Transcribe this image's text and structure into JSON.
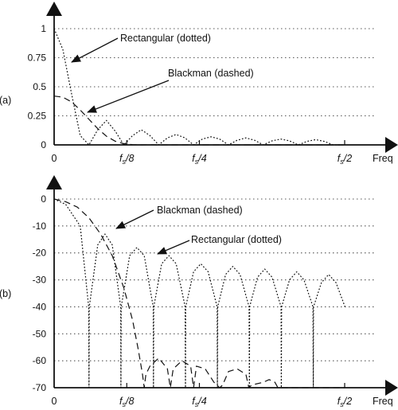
{
  "chart_data": [
    {
      "panel_label": "(a)",
      "type": "line",
      "xlabel": "Freq",
      "ylabel": "",
      "ylim": [
        0,
        1
      ],
      "yticks": [
        "0",
        "0.25",
        "0.5",
        "0.75",
        "1"
      ],
      "xticks": [
        {
          "x": 0,
          "label": "0"
        },
        {
          "x": 0.125,
          "label": "fs/8"
        },
        {
          "x": 0.25,
          "label": "fs/4"
        },
        {
          "x": 0.5,
          "label": "fs/2"
        }
      ],
      "grid": true,
      "annotations": [
        "Rectangular (dotted)",
        "Blackman (dashed)"
      ],
      "series": [
        {
          "name": "Rectangular (dotted)",
          "line_style": "dotted",
          "x": [
            0,
            0.015,
            0.03,
            0.045,
            0.06,
            0.075,
            0.09,
            0.105,
            0.12,
            0.135,
            0.15,
            0.165,
            0.18,
            0.195,
            0.21,
            0.225,
            0.24,
            0.255,
            0.27,
            0.285,
            0.3,
            0.315,
            0.33,
            0.345,
            0.36,
            0.375,
            0.39,
            0.405,
            0.42,
            0.435,
            0.45,
            0.465,
            0.48,
            0.495
          ],
          "y": [
            1,
            0.82,
            0.44,
            0.08,
            0,
            0.13,
            0.21,
            0.12,
            0,
            0.08,
            0.13,
            0.08,
            0,
            0.06,
            0.09,
            0.06,
            0,
            0.05,
            0.07,
            0.05,
            0,
            0.04,
            0.06,
            0.04,
            0,
            0.035,
            0.05,
            0.035,
            0,
            0.03,
            0.045,
            0.03,
            0,
            0
          ]
        },
        {
          "name": "Blackman (dashed)",
          "line_style": "dashed",
          "x": [
            0,
            0.015,
            0.03,
            0.045,
            0.06,
            0.075,
            0.09,
            0.105,
            0.12,
            0.135,
            0.15,
            0.165,
            0.18,
            0.5
          ],
          "y": [
            0.42,
            0.41,
            0.37,
            0.3,
            0.22,
            0.14,
            0.075,
            0.032,
            0.01,
            0.002,
            0,
            0.001,
            0,
            0
          ]
        }
      ]
    },
    {
      "panel_label": "(b)",
      "type": "line",
      "xlabel": "Freq",
      "ylabel": "",
      "ylim": [
        -70,
        0
      ],
      "yticks": [
        "0",
        "-10",
        "-20",
        "-30",
        "-40",
        "-50",
        "-60",
        "-70"
      ],
      "xticks": [
        {
          "x": 0,
          "label": "0"
        },
        {
          "x": 0.125,
          "label": "fs/8"
        },
        {
          "x": 0.25,
          "label": "fs/4"
        },
        {
          "x": 0.5,
          "label": "fs/2"
        }
      ],
      "grid": true,
      "annotations": [
        "Blackman (dashed)",
        "Rectangular (dotted)"
      ],
      "series": [
        {
          "name": "Rectangular (dotted)",
          "line_style": "dotted",
          "x": [
            0,
            0.02,
            0.045,
            0.0595,
            0.06,
            0.0605,
            0.075,
            0.0875,
            0.1,
            0.1145,
            0.115,
            0.1155,
            0.13,
            0.1425,
            0.155,
            0.1705,
            0.171,
            0.1715,
            0.185,
            0.1975,
            0.21,
            0.2255,
            0.226,
            0.2265,
            0.24,
            0.2525,
            0.265,
            0.2805,
            0.281,
            0.2815,
            0.295,
            0.3075,
            0.32,
            0.3355,
            0.336,
            0.3365,
            0.35,
            0.3625,
            0.375,
            0.3905,
            0.391,
            0.3915,
            0.405,
            0.4175,
            0.43,
            0.4455,
            0.446,
            0.4465,
            0.46,
            0.4725,
            0.485,
            0.5005
          ],
          "y": [
            0,
            -2,
            -10,
            -40,
            -70,
            -40,
            -17,
            -13,
            -17,
            -40,
            -70,
            -40,
            -21,
            -18,
            -21,
            -40,
            -70,
            -40,
            -24,
            -21,
            -24,
            -40,
            -70,
            -40,
            -27,
            -24,
            -27,
            -40,
            -70,
            -40,
            -28,
            -25,
            -28,
            -40,
            -70,
            -40,
            -29,
            -26,
            -29,
            -40,
            -70,
            -40,
            -30,
            -27,
            -30,
            -40,
            -70,
            -40,
            -31,
            -28,
            -31,
            -40
          ]
        },
        {
          "name": "Blackman (dashed)",
          "line_style": "dashed",
          "x": [
            0,
            0.02,
            0.04,
            0.06,
            0.08,
            0.1,
            0.12,
            0.135,
            0.145,
            0.152,
            0.155,
            0.158,
            0.165,
            0.18,
            0.195,
            0.2,
            0.205,
            0.22,
            0.235,
            0.24,
            0.245,
            0.26,
            0.275,
            0.285,
            0.29,
            0.3,
            0.315,
            0.33,
            0.335,
            0.34,
            0.36,
            0.37,
            0.38,
            0.385,
            0.39,
            0.5
          ],
          "y": [
            0,
            -1,
            -3,
            -7,
            -13,
            -21,
            -33,
            -45,
            -56,
            -65,
            -70,
            -65,
            -62,
            -59,
            -63,
            -70,
            -63,
            -60,
            -62,
            -70,
            -62,
            -63,
            -68,
            -70,
            -69,
            -64,
            -63,
            -65,
            -70,
            -69,
            -68,
            -67,
            -68,
            -70,
            -70,
            -70
          ]
        }
      ]
    }
  ]
}
